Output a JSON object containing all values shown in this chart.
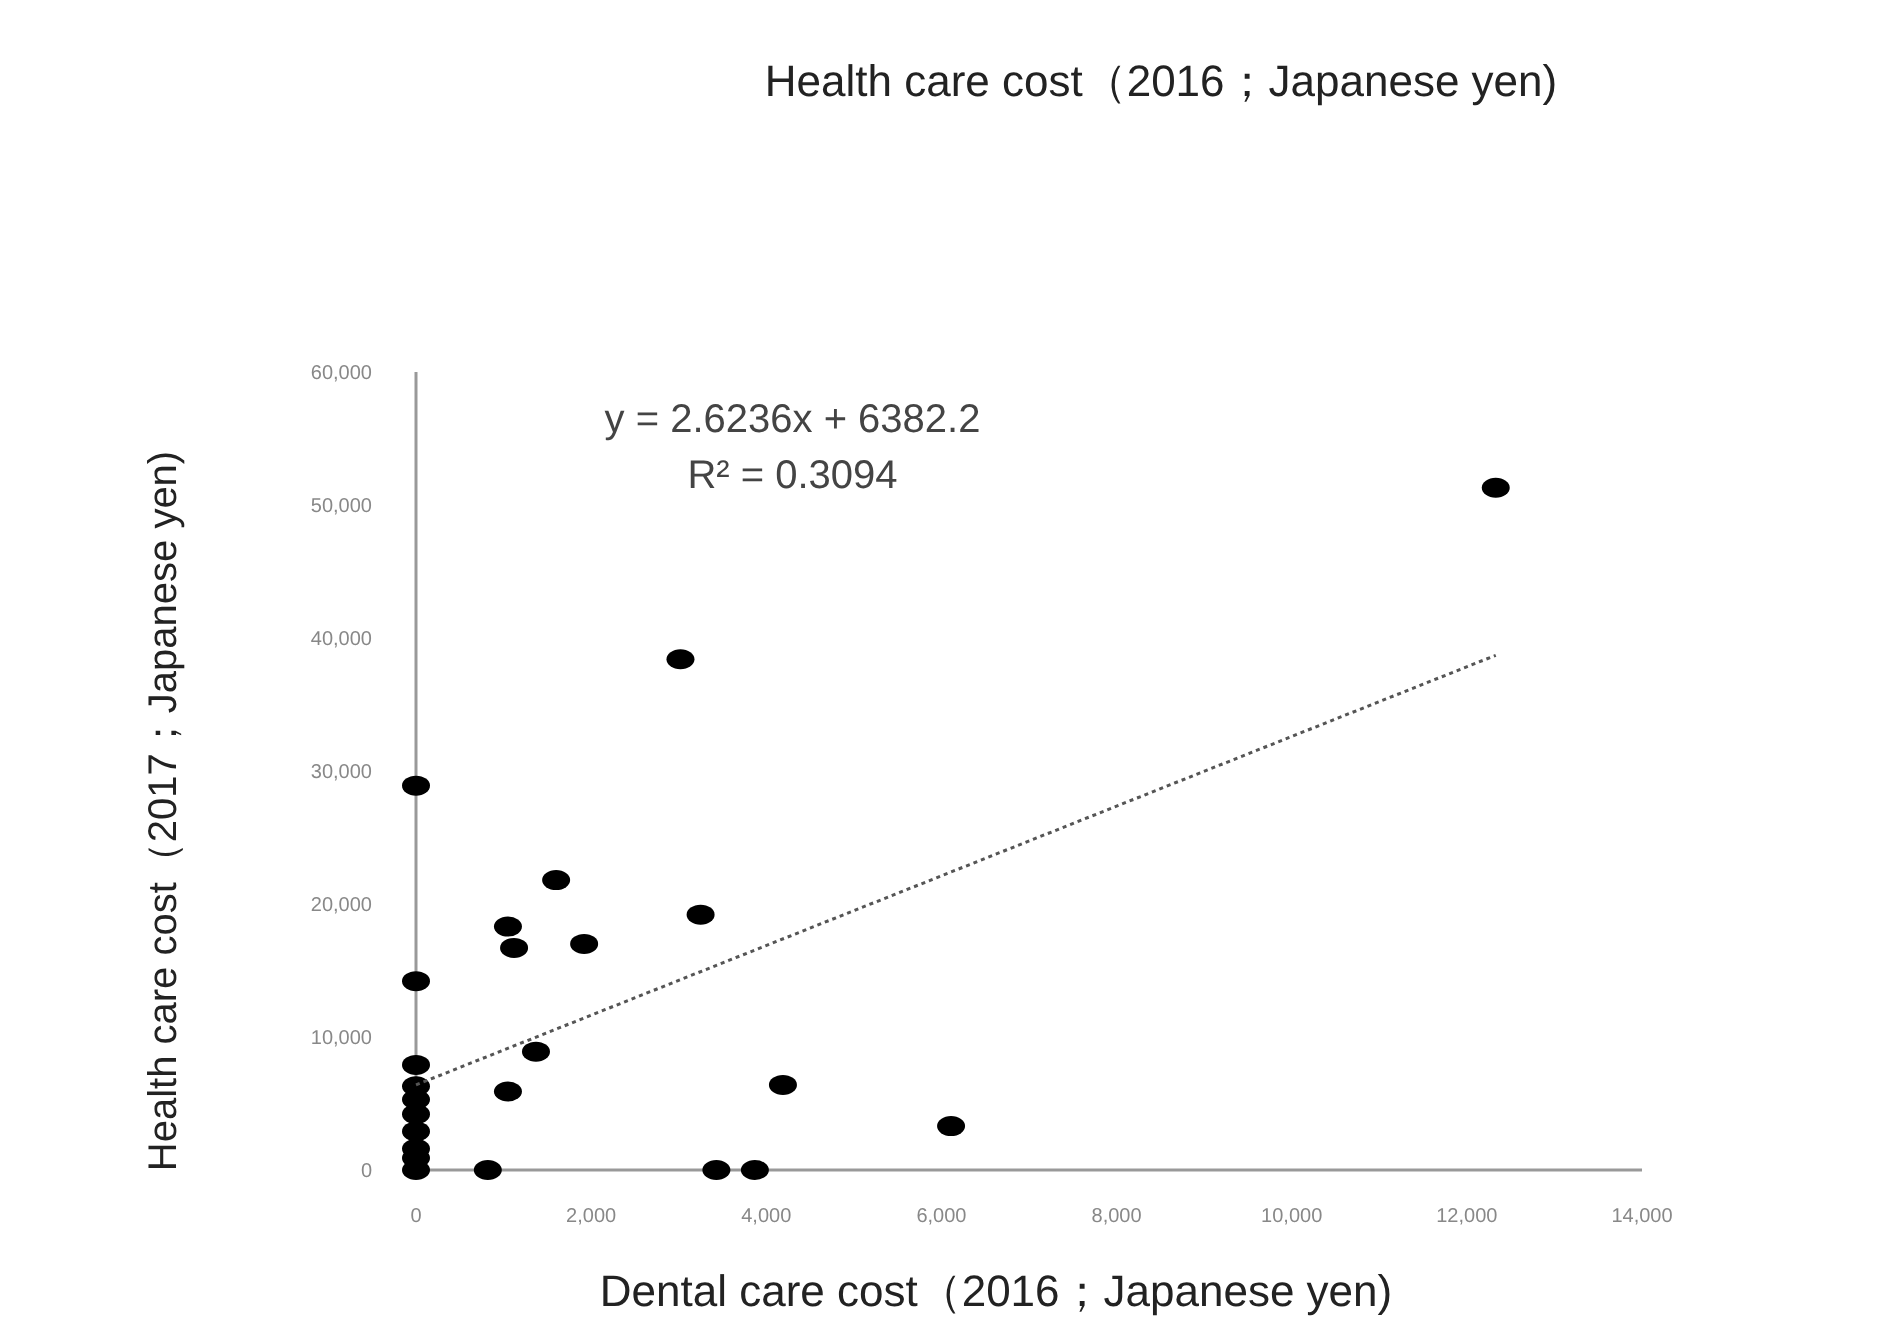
{
  "chart_data": {
    "type": "scatter",
    "title": "Health care cost（2016；Japanese yen)",
    "xlabel": "Dental care cost（2016；Japanese yen)",
    "ylabel": "Health care cost（2017；Japanese yen)",
    "annotations": [
      "y = 2.6236x + 6382.2",
      "R² = 0.3094"
    ],
    "xlim": [
      0,
      14000
    ],
    "xticks": [
      {
        "value": 0,
        "label": "0"
      },
      {
        "value": 2000,
        "label": "2,000"
      },
      {
        "value": 4000,
        "label": "4,000"
      },
      {
        "value": 6000,
        "label": "6,000"
      },
      {
        "value": 8000,
        "label": "8,000"
      },
      {
        "value": 10000,
        "label": "10,000"
      },
      {
        "value": 12000,
        "label": "12,000"
      },
      {
        "value": 14000,
        "label": "14,000"
      }
    ],
    "ylim": [
      0,
      60000
    ],
    "yticks": [
      {
        "value": 0,
        "label": "0"
      },
      {
        "value": 10000,
        "label": "10,000"
      },
      {
        "value": 20000,
        "label": "20,000"
      },
      {
        "value": 30000,
        "label": "30,000"
      },
      {
        "value": 40000,
        "label": "40,000"
      },
      {
        "value": 50000,
        "label": "50,000"
      },
      {
        "value": 60000,
        "label": "60,000"
      }
    ],
    "grid": false,
    "marker": "circle",
    "series": [
      {
        "type": "scatter",
        "color": "#000000",
        "x": [
          0,
          0,
          0,
          0,
          0,
          0,
          0,
          0,
          0,
          0,
          820,
          3430,
          3870,
          3020,
          1600,
          1050,
          1120,
          1920,
          3250,
          1370,
          1050,
          4190,
          12330,
          6110
        ],
        "values": [
          28900,
          14200,
          7900,
          6300,
          5300,
          4200,
          2900,
          1600,
          900,
          0,
          0,
          0,
          0,
          38400,
          21800,
          18300,
          16700,
          17000,
          19200,
          8900,
          5900,
          6400,
          51300,
          3300
        ]
      },
      {
        "type": "line",
        "color": "#555555",
        "line_style": "dotted",
        "marker": "none",
        "x": [
          0,
          12330
        ],
        "values": [
          6400,
          38700
        ]
      }
    ]
  }
}
